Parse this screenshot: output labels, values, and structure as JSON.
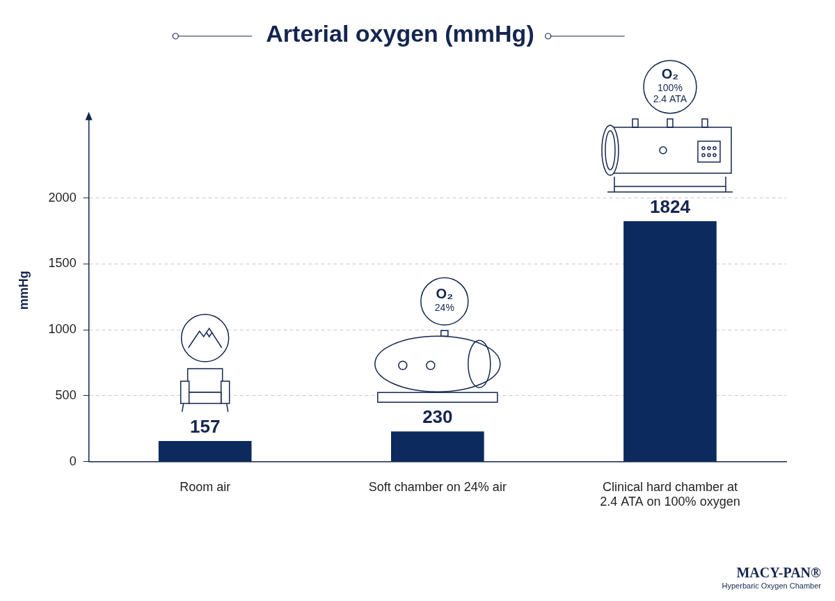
{
  "chart_data": {
    "type": "bar",
    "title": "Arterial oxygen (mmHg)",
    "y_label": "mmHg",
    "categories": [
      "Room air",
      "Soft chamber on 24% air",
      "Clinical hard chamber at 2.4 ATA on 100% oxygen"
    ],
    "values": [
      157,
      230,
      1824
    ],
    "color": "#0d2a5e",
    "ylim": [
      0,
      2600
    ],
    "yticks": [
      0,
      500,
      1000,
      1500,
      2000
    ],
    "grid": true,
    "data_labels": true,
    "annotations": [
      {
        "category": "Soft chamber on 24% air",
        "lines": [
          "O₂",
          "24%"
        ]
      },
      {
        "category": "Clinical hard chamber at 2.4 ATA on 100% oxygen",
        "lines": [
          "O₂",
          "100%",
          "2.4 ATA"
        ]
      }
    ],
    "logo": [
      "MACY-PAN®",
      "Hyperbaric Oxygen Chamber"
    ]
  }
}
